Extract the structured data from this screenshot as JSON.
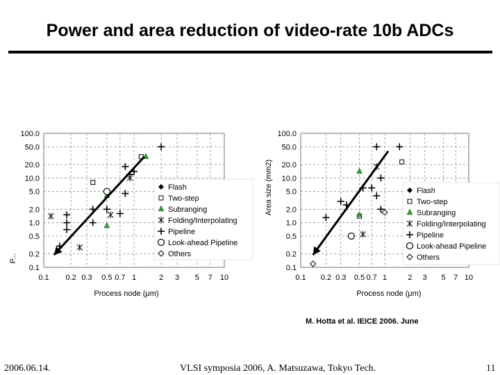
{
  "slide": {
    "title": "Power and area reduction of video-rate 10b ADCs",
    "citation": "M. Hotta et al. IEICE 2006. June",
    "footer_date": "2006.06.14.",
    "footer_center": "VLSI symposia 2006,  A. Matsuzawa, Tokyo Tech.",
    "page_number": "11"
  },
  "chart_data": [
    {
      "type": "scatter",
      "title": "",
      "xlabel": "Process node (μm)",
      "ylabel": "P...",
      "xscale": "log",
      "yscale": "log",
      "xlim": [
        0.1,
        10
      ],
      "ylim": [
        0.1,
        100
      ],
      "x_ticks": [
        "0.1",
        "0.2",
        "0.3",
        "0.5",
        "0.7",
        "1",
        "2",
        "3",
        "5",
        "7",
        "10"
      ],
      "y_ticks": [
        "100.0",
        "50.0",
        "20.0",
        "10.0",
        "5.0",
        "2.0",
        "1.0",
        "0.5",
        "0.2",
        "0.1"
      ],
      "grid": true,
      "legend_position": "right",
      "series": [
        {
          "name": "Flash",
          "marker": "diamond",
          "points": []
        },
        {
          "name": "Two-step",
          "marker": "square",
          "points": [
            [
              0.35,
              8.0
            ],
            [
              1.2,
              30.0
            ]
          ]
        },
        {
          "name": "Subranging",
          "marker": "triangle",
          "points": [
            [
              0.5,
              4.0
            ],
            [
              0.5,
              0.85
            ],
            [
              1.35,
              30.0
            ]
          ]
        },
        {
          "name": "Folding/Interpolating",
          "marker": "asterisk",
          "points": [
            [
              0.12,
              1.4
            ],
            [
              0.25,
              0.28
            ],
            [
              0.55,
              1.5
            ],
            [
              0.9,
              10.0
            ]
          ]
        },
        {
          "name": "Pipeline",
          "marker": "plus",
          "points": [
            [
              0.18,
              1.5
            ],
            [
              0.18,
              1.0
            ],
            [
              0.18,
              0.7
            ],
            [
              0.15,
              0.3
            ],
            [
              0.35,
              1.0
            ],
            [
              0.35,
              2.0
            ],
            [
              0.5,
              2.0
            ],
            [
              0.7,
              1.6
            ],
            [
              0.8,
              4.5
            ],
            [
              0.8,
              18.0
            ],
            [
              0.9,
              12.0
            ],
            [
              1.0,
              14.0
            ],
            [
              2.0,
              50.0
            ]
          ]
        },
        {
          "name": "Look-ahead Pipeline",
          "marker": "circle",
          "points": [
            [
              0.5,
              5.0
            ]
          ]
        },
        {
          "name": "Others",
          "marker": "open-diamond",
          "points": []
        }
      ],
      "trend_arrow": {
        "from": [
          1.3,
          30.0
        ],
        "to": [
          0.13,
          0.19
        ]
      }
    },
    {
      "type": "scatter",
      "title": "",
      "xlabel": "Process node (μm)",
      "ylabel": "Area size (mm2)",
      "xscale": "log",
      "yscale": "log",
      "xlim": [
        0.1,
        10
      ],
      "ylim": [
        0.1,
        100
      ],
      "x_ticks": [
        "0.1",
        "0.2",
        "0.3",
        "0.5",
        "0.7",
        "1",
        "2",
        "3",
        "5",
        "7",
        "10"
      ],
      "y_ticks": [
        "100.0",
        "50.0",
        "20.0",
        "10.0",
        "5.0",
        "2.0",
        "1.0",
        "0.5",
        "0.2",
        "0.1"
      ],
      "grid": true,
      "legend_position": "right",
      "series": [
        {
          "name": "Flash",
          "marker": "diamond",
          "points": []
        },
        {
          "name": "Two-step",
          "marker": "square",
          "points": [
            [
              1.6,
              23.0
            ],
            [
              0.5,
              1.4
            ]
          ]
        },
        {
          "name": "Subranging",
          "marker": "triangle",
          "points": [
            [
              0.5,
              14.0
            ],
            [
              0.5,
              1.5
            ]
          ]
        },
        {
          "name": "Folding/Interpolating",
          "marker": "asterisk",
          "points": [
            [
              0.8,
              18.0
            ],
            [
              0.55,
              0.55
            ]
          ]
        },
        {
          "name": "Pipeline",
          "marker": "plus",
          "points": [
            [
              0.2,
              1.3
            ],
            [
              0.3,
              3.0
            ],
            [
              0.35,
              2.5
            ],
            [
              0.55,
              6.0
            ],
            [
              0.7,
              6.0
            ],
            [
              0.8,
              50.0
            ],
            [
              0.9,
              10.0
            ],
            [
              0.8,
              4.0
            ],
            [
              0.9,
              2.0
            ],
            [
              1.5,
              50.0
            ]
          ]
        },
        {
          "name": "Look-ahead Pipeline",
          "marker": "circle",
          "points": [
            [
              0.4,
              0.5
            ]
          ]
        },
        {
          "name": "Others",
          "marker": "open-diamond",
          "points": [
            [
              0.14,
              0.12
            ],
            [
              1.0,
              1.7
            ]
          ]
        }
      ],
      "trend_arrow": {
        "from": [
          1.1,
          40.0
        ],
        "to": [
          0.14,
          0.19
        ]
      }
    }
  ]
}
